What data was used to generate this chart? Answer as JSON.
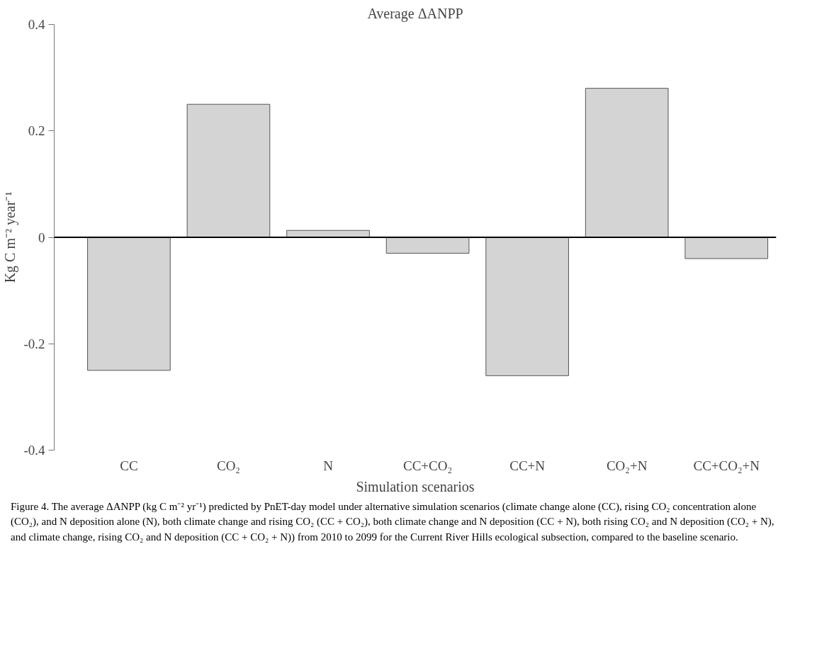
{
  "chart_data": {
    "type": "bar",
    "title": "Average ΔANPP",
    "xlabel": "Simulation scenarios",
    "ylabel": "Kg C m⁻² year⁻¹",
    "categories": [
      "CC",
      "CO₂",
      "N",
      "CC+CO₂",
      "CC+N",
      "CO₂+N",
      "CC+CO₂+N"
    ],
    "values": [
      -0.25,
      0.25,
      0.013,
      -0.03,
      -0.26,
      0.28,
      -0.04
    ],
    "color": "#d4d4d4",
    "ylim": [
      -0.4,
      0.4
    ],
    "yticks": [
      -0.4,
      -0.2,
      0,
      0.2,
      0.4
    ],
    "grid": false,
    "ref_lines": [
      {
        "axis": "y",
        "value": 0,
        "color": "#000000"
      }
    ],
    "annotations": [
      "Figure 4. The average ΔANPP (kg C m⁻² yr⁻¹) predicted by PnET-day model under alternative simulation scenarios (climate change alone (CC), rising CO₂ concentration alone (CO₂), and N deposition alone (N), both climate change and rising CO₂ (CC + CO₂), both climate change and N deposition (CC + N), both rising CO₂ and N deposition (CO₂ + N), and climate change, rising CO₂ and N deposition (CC + CO₂ + N)) from 2010 to 2099 for the Current River Hills ecological subsection, compared to the baseline scenario."
    ]
  }
}
